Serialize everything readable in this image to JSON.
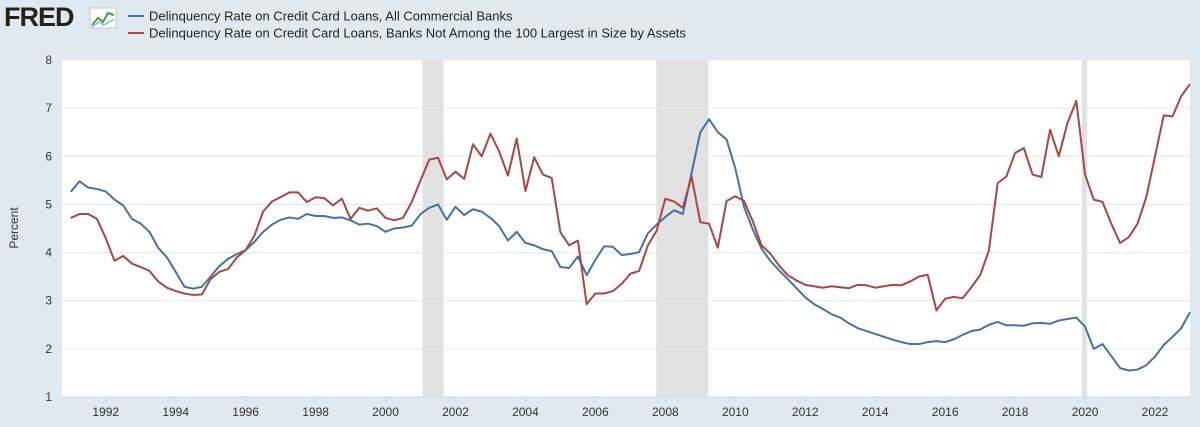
{
  "chart_data": {
    "type": "line",
    "logo": "FRED",
    "y_label": "Percent",
    "xlim": [
      1990.75,
      2023.0
    ],
    "xticks": [
      1992,
      1994,
      1996,
      1998,
      2000,
      2002,
      2004,
      2006,
      2008,
      2010,
      2012,
      2014,
      2016,
      2018,
      2020,
      2022
    ],
    "ylim": [
      1,
      8
    ],
    "yticks": [
      1,
      2,
      3,
      4,
      5,
      6,
      7,
      8
    ],
    "grid": true,
    "legend": "top",
    "recessions": [
      [
        2001.06,
        2001.66
      ],
      [
        2007.74,
        2009.23
      ],
      [
        2019.91,
        2020.06
      ]
    ],
    "x": [
      1991,
      1991.25,
      1991.5,
      1991.75,
      1992,
      1992.25,
      1992.5,
      1992.75,
      1993,
      1993.25,
      1993.5,
      1993.75,
      1994,
      1994.25,
      1994.5,
      1994.75,
      1995,
      1995.25,
      1995.5,
      1995.75,
      1996,
      1996.25,
      1996.5,
      1996.75,
      1997,
      1997.25,
      1997.5,
      1997.75,
      1998,
      1998.25,
      1998.5,
      1998.75,
      1999,
      1999.25,
      1999.5,
      1999.75,
      2000,
      2000.25,
      2000.5,
      2000.75,
      2001,
      2001.25,
      2001.5,
      2001.75,
      2002,
      2002.25,
      2002.5,
      2002.75,
      2003,
      2003.25,
      2003.5,
      2003.75,
      2004,
      2004.25,
      2004.5,
      2004.75,
      2005,
      2005.25,
      2005.5,
      2005.75,
      2006,
      2006.25,
      2006.5,
      2006.75,
      2007,
      2007.25,
      2007.5,
      2007.75,
      2008,
      2008.25,
      2008.5,
      2008.75,
      2009,
      2009.25,
      2009.5,
      2009.75,
      2010,
      2010.25,
      2010.5,
      2010.75,
      2011,
      2011.25,
      2011.5,
      2011.75,
      2012,
      2012.25,
      2012.5,
      2012.75,
      2013,
      2013.25,
      2013.5,
      2013.75,
      2014,
      2014.25,
      2014.5,
      2014.75,
      2015,
      2015.25,
      2015.5,
      2015.75,
      2016,
      2016.25,
      2016.5,
      2016.75,
      2017,
      2017.25,
      2017.5,
      2017.75,
      2018,
      2018.25,
      2018.5,
      2018.75,
      2019,
      2019.25,
      2019.5,
      2019.75,
      2020,
      2020.25,
      2020.5,
      2020.75,
      2021,
      2021.25,
      2021.5,
      2021.75,
      2022,
      2022.25,
      2022.5,
      2022.75,
      2023
    ],
    "series": [
      {
        "name": "Delinquency Rate on Credit Card Loans, All Commercial Banks",
        "color": "#4572a7",
        "values": [
          5.26,
          5.48,
          5.35,
          5.32,
          5.27,
          5.1,
          4.98,
          4.7,
          4.6,
          4.43,
          4.1,
          3.9,
          3.6,
          3.29,
          3.25,
          3.29,
          3.5,
          3.72,
          3.87,
          3.97,
          4.05,
          4.22,
          4.43,
          4.58,
          4.68,
          4.73,
          4.7,
          4.8,
          4.76,
          4.76,
          4.72,
          4.73,
          4.67,
          4.58,
          4.6,
          4.55,
          4.43,
          4.5,
          4.52,
          4.56,
          4.8,
          4.93,
          5.0,
          4.68,
          4.95,
          4.78,
          4.9,
          4.85,
          4.72,
          4.55,
          4.25,
          4.43,
          4.2,
          4.15,
          4.07,
          4.03,
          3.7,
          3.68,
          3.92,
          3.53,
          3.85,
          4.13,
          4.12,
          3.95,
          3.97,
          4.01,
          4.4,
          4.58,
          4.74,
          4.88,
          4.8,
          5.65,
          6.5,
          6.77,
          6.5,
          6.35,
          5.75,
          4.95,
          4.48,
          4.08,
          3.83,
          3.63,
          3.45,
          3.26,
          3.07,
          2.93,
          2.83,
          2.72,
          2.65,
          2.53,
          2.43,
          2.37,
          2.31,
          2.25,
          2.19,
          2.14,
          2.1,
          2.1,
          2.14,
          2.16,
          2.14,
          2.2,
          2.29,
          2.37,
          2.4,
          2.5,
          2.56,
          2.49,
          2.49,
          2.48,
          2.53,
          2.54,
          2.52,
          2.59,
          2.62,
          2.65,
          2.46,
          2.0,
          2.1,
          1.85,
          1.6,
          1.55,
          1.57,
          1.66,
          1.84,
          2.08,
          2.25,
          2.43,
          2.76
        ]
      },
      {
        "name": "Delinquency Rate on Credit Card Loans, Banks Not Among the 100 Largest in Size by Assets",
        "color": "#aa4643",
        "values": [
          4.72,
          4.8,
          4.8,
          4.7,
          4.3,
          3.83,
          3.93,
          3.77,
          3.7,
          3.62,
          3.4,
          3.27,
          3.2,
          3.15,
          3.12,
          3.13,
          3.45,
          3.6,
          3.66,
          3.9,
          4.05,
          4.35,
          4.85,
          5.06,
          5.15,
          5.25,
          5.25,
          5.05,
          5.15,
          5.13,
          4.98,
          5.12,
          4.7,
          4.93,
          4.87,
          4.92,
          4.72,
          4.67,
          4.72,
          5.05,
          5.5,
          5.93,
          5.97,
          5.52,
          5.68,
          5.53,
          6.25,
          6.0,
          6.47,
          6.1,
          5.6,
          6.37,
          5.28,
          5.98,
          5.62,
          5.55,
          4.42,
          4.15,
          4.25,
          2.93,
          3.15,
          3.15,
          3.2,
          3.35,
          3.56,
          3.62,
          4.15,
          4.45,
          5.12,
          5.06,
          4.93,
          5.58,
          4.63,
          4.6,
          4.1,
          5.07,
          5.17,
          5.07,
          4.65,
          4.15,
          3.98,
          3.73,
          3.53,
          3.42,
          3.33,
          3.3,
          3.27,
          3.3,
          3.28,
          3.26,
          3.33,
          3.32,
          3.27,
          3.3,
          3.33,
          3.32,
          3.4,
          3.5,
          3.54,
          2.8,
          3.04,
          3.08,
          3.05,
          3.28,
          3.53,
          4.04,
          5.44,
          5.58,
          6.07,
          6.17,
          5.62,
          5.57,
          6.55,
          6.0,
          6.7,
          7.15,
          5.62,
          5.1,
          5.05,
          4.6,
          4.2,
          4.32,
          4.6,
          5.15,
          6.0,
          6.85,
          6.83,
          7.25,
          7.5
        ]
      }
    ]
  }
}
